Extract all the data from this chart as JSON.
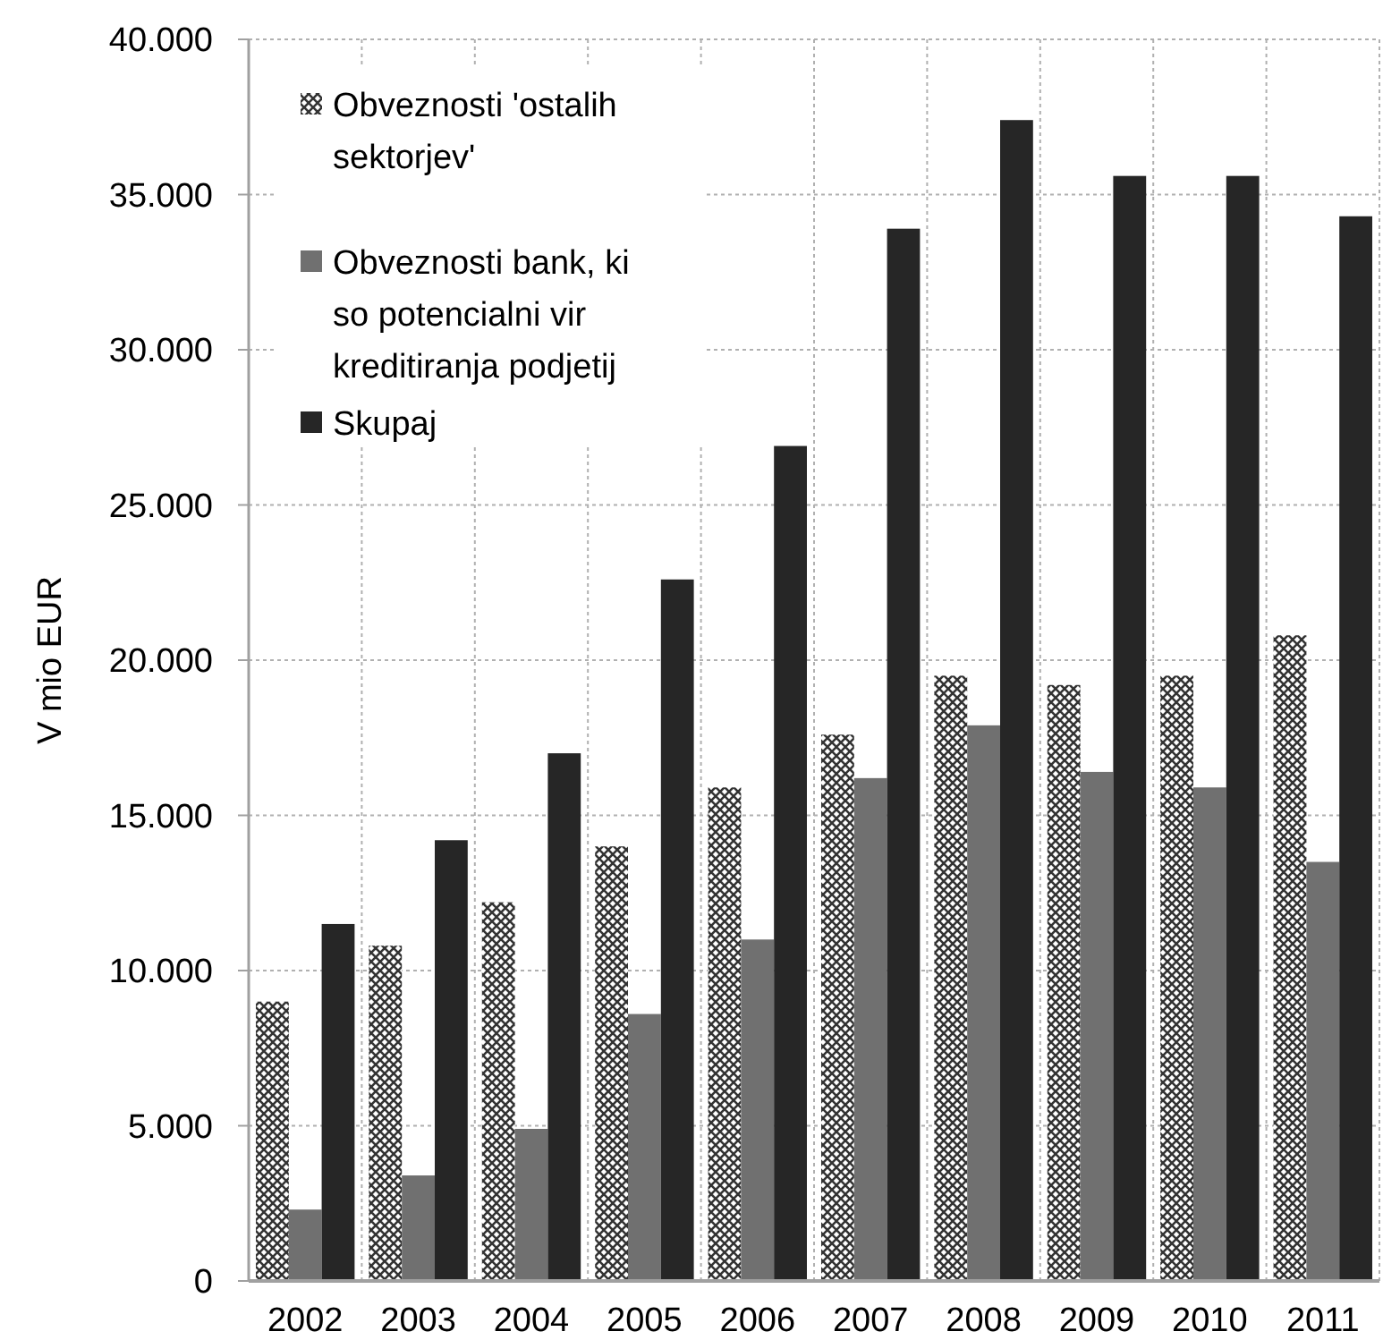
{
  "chart_data": {
    "type": "bar",
    "ylabel": "V mio EUR",
    "categories": [
      "2002",
      "2003",
      "2004",
      "2005",
      "2006",
      "2007",
      "2008",
      "2009",
      "2010",
      "2011"
    ],
    "series": [
      {
        "name": "Obveznosti 'ostalih sektorjev'",
        "color": "#333333",
        "values": [
          9000,
          10800,
          12200,
          14000,
          15900,
          17600,
          19500,
          19200,
          19500,
          20800
        ]
      },
      {
        "name": "Obveznosti bank, ki so potencialni vir kreditiranja podjetij",
        "color": "#707070",
        "values": [
          2300,
          3400,
          4900,
          8600,
          11000,
          16200,
          17900,
          16400,
          15900,
          13500
        ]
      },
      {
        "name": "Skupaj",
        "color": "#262626",
        "values": [
          11500,
          14200,
          17000,
          22600,
          26900,
          33900,
          37400,
          35600,
          35600,
          34300
        ]
      }
    ],
    "ylim": [
      0,
      40000
    ],
    "yticks": [
      {
        "value": 0,
        "label": "0"
      },
      {
        "value": 5000,
        "label": "5.000"
      },
      {
        "value": 10000,
        "label": "10.000"
      },
      {
        "value": 15000,
        "label": "15.000"
      },
      {
        "value": 20000,
        "label": "20.000"
      },
      {
        "value": 25000,
        "label": "25.000"
      },
      {
        "value": 30000,
        "label": "30.000"
      },
      {
        "value": 35000,
        "label": "35.000"
      },
      {
        "value": 40000,
        "label": "40.000"
      }
    ],
    "grid": true,
    "legend": "top left"
  }
}
